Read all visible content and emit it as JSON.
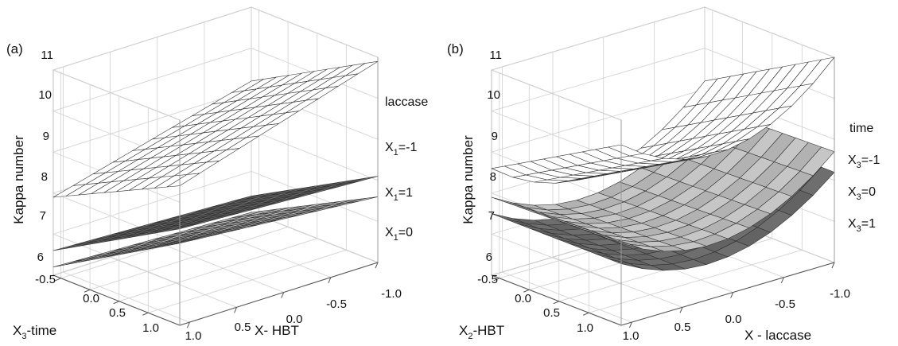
{
  "chart_data": [
    {
      "panel_label": "(a)",
      "type": "surface3d",
      "zlabel": "Kappa number",
      "zticks": [
        "6",
        "7",
        "8",
        "9",
        "10",
        "11"
      ],
      "zlim": [
        6,
        11
      ],
      "xlabel": "X- HBT",
      "xticks": [
        "1.0",
        "0.5",
        "0.0",
        "-0.5",
        "-1.0"
      ],
      "xlim": [
        1.0,
        -1.0
      ],
      "ylabel": {
        "base": "X",
        "sub": "3",
        "rest": "-time"
      },
      "yticks": [
        "-0.5",
        "0.0",
        "0.5",
        "1.0"
      ],
      "ylim": [
        -1.0,
        1.0
      ],
      "legend_title": "laccase",
      "series": [
        {
          "name": {
            "base": "X",
            "sub": "1",
            "rest": "=-1"
          },
          "color": "#ffffff",
          "z": "linear",
          "z_corners": {
            "x_near_y_near": 9.4,
            "x_far_y_near": 10.9,
            "x_near_y_far": 7.9,
            "x_far_y_far": 9.2
          }
        },
        {
          "name": {
            "base": "X",
            "sub": "1",
            "rest": "=1"
          },
          "color": "#6e6e6e",
          "z": "linear",
          "z_corners": {
            "x_near_y_near": 8.35,
            "x_far_y_near": 8.1,
            "x_near_y_far": 6.6,
            "x_far_y_far": 6.4
          }
        },
        {
          "name": {
            "base": "X",
            "sub": "1",
            "rest": "=0"
          },
          "color": "#c6c6c6",
          "z": "linear",
          "z_corners": {
            "x_near_y_near": 8.0,
            "x_far_y_near": 7.6,
            "x_near_y_far": 6.2,
            "x_far_y_far": 6.0
          }
        }
      ]
    },
    {
      "panel_label": "(b)",
      "type": "surface3d",
      "zlabel": "Kappa number",
      "zticks": [
        "6",
        "7",
        "8",
        "9",
        "10",
        "11"
      ],
      "zlim": [
        6,
        11
      ],
      "xlabel": "X - laccase",
      "xticks": [
        "1.0",
        "0.5",
        "0.0",
        "-0.5",
        "-1.0"
      ],
      "xlim": [
        1.0,
        -1.0
      ],
      "ylabel": {
        "base": "X",
        "sub": "2",
        "rest": "-HBT"
      },
      "yticks": [
        "-0.5",
        "0.0",
        "0.5",
        "1.0"
      ],
      "ylim": [
        -1.0,
        1.0
      ],
      "legend_title": "time",
      "series": [
        {
          "name": {
            "base": "X",
            "sub": "3",
            "rest": "=-1"
          },
          "color": "#ffffff",
          "z": "quadratic",
          "z_params": {
            "min": 6.8,
            "left": 9.2,
            "right": 8.6,
            "slope_y": 1.8
          }
        },
        {
          "name": {
            "base": "X",
            "sub": "3",
            "rest": "=0"
          },
          "color": "#c6c6c6",
          "z": "quadratic",
          "z_params": {
            "min": 6.5,
            "left": 8.6,
            "right": 7.9,
            "slope_y": 0.1
          }
        },
        {
          "name": {
            "base": "X",
            "sub": "3",
            "rest": "=1"
          },
          "color": "#6e6e6e",
          "z": "quadratic",
          "z_params": {
            "min": 6.2,
            "left": 8.2,
            "right": 7.5,
            "slope_y": 0.0
          }
        }
      ]
    }
  ]
}
